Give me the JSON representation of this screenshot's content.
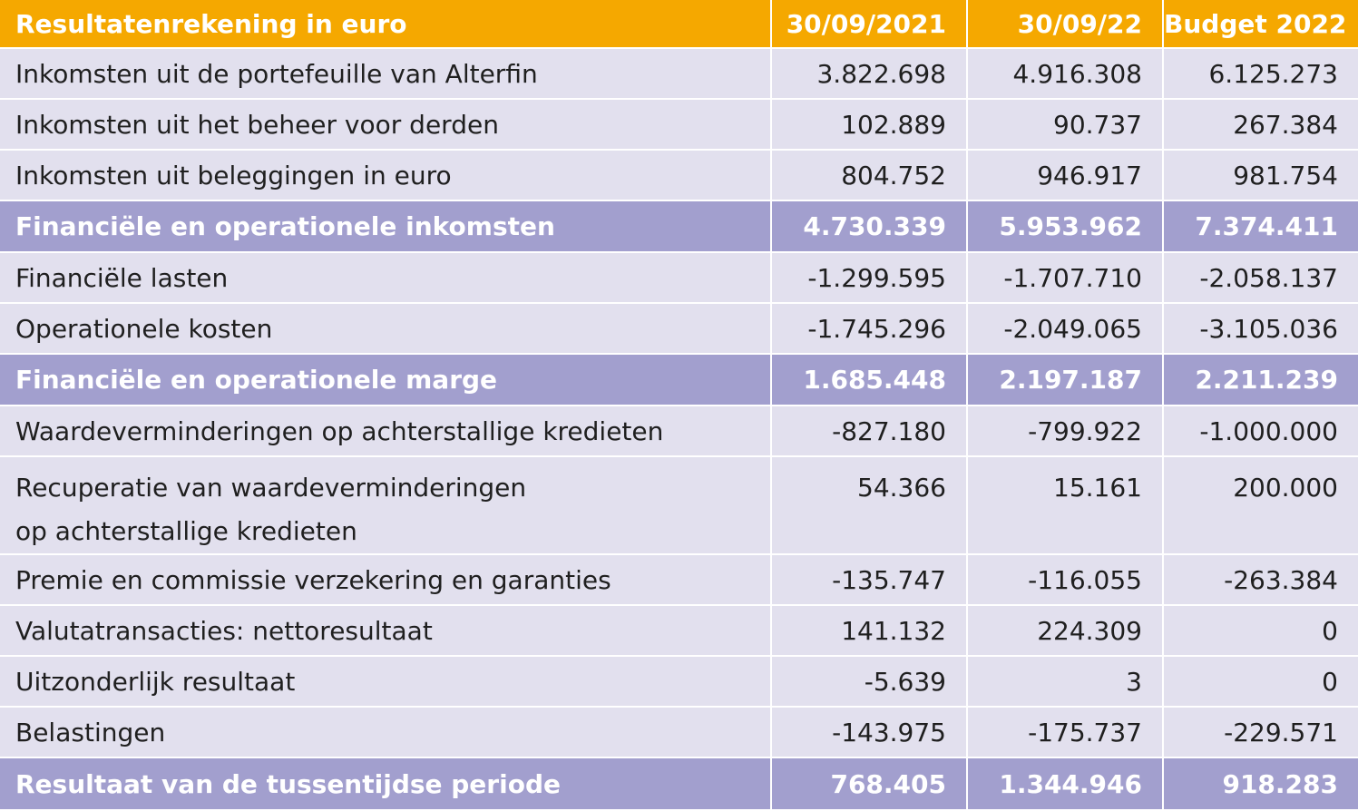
{
  "table": {
    "header": {
      "label": "Resultatenrekening in euro",
      "col1": "30/09/2021",
      "col2": "30/09/22",
      "col3": "Budget 2022"
    },
    "rows": [
      {
        "label": "Inkomsten uit de portefeuille van Alterfin",
        "v1": "3.822.698",
        "v2": "4.916.308",
        "v3": "6.125.273"
      },
      {
        "label": "Inkomsten uit het beheer voor derden",
        "v1": "102.889",
        "v2": "90.737",
        "v3": "267.384"
      },
      {
        "label": "Inkomsten uit beleggingen in euro",
        "v1": "804.752",
        "v2": "946.917",
        "v3": "981.754"
      },
      {
        "label": "Financiële en operationele inkomsten",
        "v1": "4.730.339",
        "v2": "5.953.962",
        "v3": "7.374.411"
      },
      {
        "label": "Financiële lasten",
        "v1": "-1.299.595",
        "v2": "-1.707.710",
        "v3": "-2.058.137"
      },
      {
        "label": "Operationele kosten",
        "v1": "-1.745.296",
        "v2": "-2.049.065",
        "v3": "-3.105.036"
      },
      {
        "label": "Financiële en operationele marge",
        "v1": "1.685.448",
        "v2": "2.197.187",
        "v3": "2.211.239"
      },
      {
        "label": "Waardeverminderingen op achterstallige kredieten",
        "v1": "-827.180",
        "v2": "-799.922",
        "v3": "-1.000.000"
      },
      {
        "label_line1": "Recuperatie van waardeverminderingen",
        "label_line2": "op achterstallige kredieten",
        "v1": "54.366",
        "v2": "15.161",
        "v3": "200.000"
      },
      {
        "label": "Premie en commissie verzekering en garanties",
        "v1": "-135.747",
        "v2": "-116.055",
        "v3": "-263.384"
      },
      {
        "label": "Valutatransacties: nettoresultaat",
        "v1": "141.132",
        "v2": "224.309",
        "v3": "0"
      },
      {
        "label": "Uitzonderlijk resultaat",
        "v1": "-5.639",
        "v2": "3",
        "v3": "0"
      },
      {
        "label": "Belastingen",
        "v1": "-143.975",
        "v2": "-175.737",
        "v3": "-229.571"
      },
      {
        "label": "Resultaat van de tussentijdse periode",
        "v1": "768.405",
        "v2": "1.344.946",
        "v3": "918.283"
      }
    ]
  },
  "colors": {
    "header_bg": "#f5a800",
    "row_bg": "#e2e0ee",
    "total_bg": "#a29fce"
  }
}
